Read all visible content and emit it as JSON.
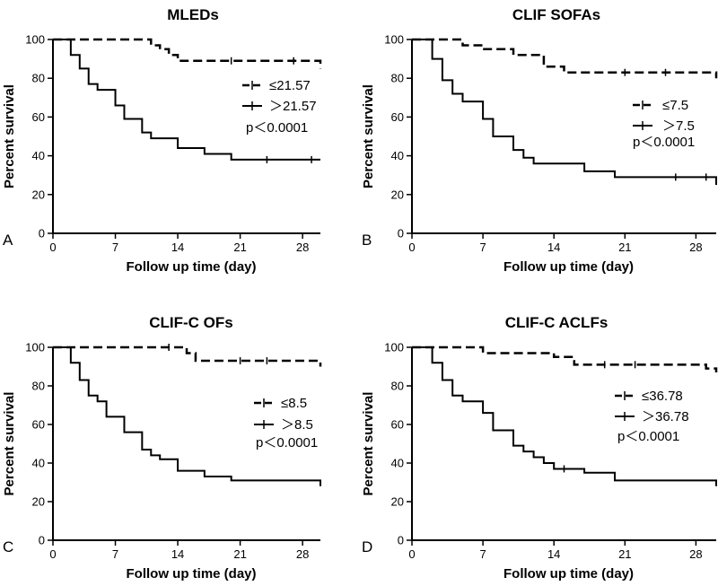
{
  "chart_data": [
    {
      "type": "line",
      "panel_label": "A",
      "title": "MLEDs",
      "xlabel": "Follow up time (day)",
      "ylabel": "Percent survival",
      "xlim": [
        0,
        30
      ],
      "ylim": [
        0,
        100
      ],
      "xticks": [
        0,
        7,
        14,
        21,
        28
      ],
      "yticks": [
        0,
        20,
        40,
        60,
        80,
        100
      ],
      "pvalue": "p＜0.0001",
      "series": [
        {
          "name": "≤21.57",
          "style": "dashed",
          "x": [
            0,
            2,
            10,
            11,
            12,
            13,
            14,
            30
          ],
          "y": [
            100,
            100,
            100,
            97,
            95,
            92,
            89,
            85
          ],
          "censor_x": [
            20,
            27
          ]
        },
        {
          "name": "＞21.57",
          "style": "solid",
          "x": [
            0,
            2,
            3,
            4,
            5,
            7,
            8,
            10,
            11,
            14,
            17,
            20,
            30
          ],
          "y": [
            100,
            92,
            85,
            77,
            74,
            66,
            59,
            52,
            49,
            44,
            41,
            38,
            38
          ],
          "censor_x": [
            24,
            29
          ]
        }
      ]
    },
    {
      "type": "line",
      "panel_label": "B",
      "title": "CLIF SOFAs",
      "xlabel": "Follow up time (day)",
      "ylabel": "Percent survival",
      "xlim": [
        0,
        30
      ],
      "ylim": [
        0,
        100
      ],
      "xticks": [
        0,
        7,
        14,
        21,
        28
      ],
      "yticks": [
        0,
        20,
        40,
        60,
        80,
        100
      ],
      "pvalue": "p＜0.0001",
      "series": [
        {
          "name": "≤7.5",
          "style": "dashed",
          "x": [
            0,
            2,
            5,
            7,
            10,
            13,
            15,
            29,
            30
          ],
          "y": [
            100,
            100,
            97,
            95,
            92,
            86,
            83,
            83,
            80
          ],
          "censor_x": [
            21,
            25
          ]
        },
        {
          "name": "＞7.5",
          "style": "solid",
          "x": [
            0,
            2,
            3,
            4,
            5,
            7,
            8,
            10,
            11,
            12,
            14,
            17,
            20,
            30
          ],
          "y": [
            100,
            90,
            79,
            72,
            68,
            59,
            50,
            43,
            39,
            36,
            36,
            32,
            29,
            25
          ],
          "censor_x": [
            26,
            29
          ]
        }
      ]
    },
    {
      "type": "line",
      "panel_label": "C",
      "title": "CLIF-C OFs",
      "xlabel": "Follow up time (day)",
      "ylabel": "Percent survival",
      "xlim": [
        0,
        30
      ],
      "ylim": [
        0,
        100
      ],
      "xticks": [
        0,
        7,
        14,
        21,
        28
      ],
      "yticks": [
        0,
        20,
        40,
        60,
        80,
        100
      ],
      "pvalue": "p＜0.0001",
      "series": [
        {
          "name": "≤8.5",
          "style": "dashed",
          "x": [
            0,
            2,
            14,
            15,
            16,
            29,
            30
          ],
          "y": [
            100,
            100,
            100,
            97,
            93,
            93,
            90
          ],
          "censor_x": [
            13,
            21,
            24
          ]
        },
        {
          "name": "＞8.5",
          "style": "solid",
          "x": [
            0,
            2,
            3,
            4,
            5,
            6,
            8,
            10,
            11,
            12,
            14,
            17,
            20,
            30
          ],
          "y": [
            100,
            92,
            83,
            75,
            72,
            64,
            56,
            47,
            44,
            42,
            36,
            33,
            31,
            28
          ],
          "censor_x": []
        }
      ]
    },
    {
      "type": "line",
      "panel_label": "D",
      "title": "CLIF-C ACLFs",
      "xlabel": "Follow up time (day)",
      "ylabel": "Percent survival",
      "xlim": [
        0,
        30
      ],
      "ylim": [
        0,
        100
      ],
      "xticks": [
        0,
        7,
        14,
        21,
        28
      ],
      "yticks": [
        0,
        20,
        40,
        60,
        80,
        100
      ],
      "pvalue": "p＜0.0001",
      "series": [
        {
          "name": "≤36.78",
          "style": "dashed",
          "x": [
            0,
            2,
            7,
            14,
            16,
            29,
            30
          ],
          "y": [
            100,
            100,
            97,
            95,
            91,
            89,
            87
          ],
          "censor_x": [
            19,
            22
          ]
        },
        {
          "name": "＞36.78",
          "style": "solid",
          "x": [
            0,
            2,
            3,
            4,
            5,
            7,
            8,
            10,
            11,
            12,
            13,
            14,
            17,
            20,
            30
          ],
          "y": [
            100,
            92,
            83,
            75,
            72,
            66,
            57,
            49,
            46,
            43,
            40,
            37,
            35,
            31,
            28
          ],
          "censor_x": [
            15
          ]
        }
      ]
    }
  ]
}
